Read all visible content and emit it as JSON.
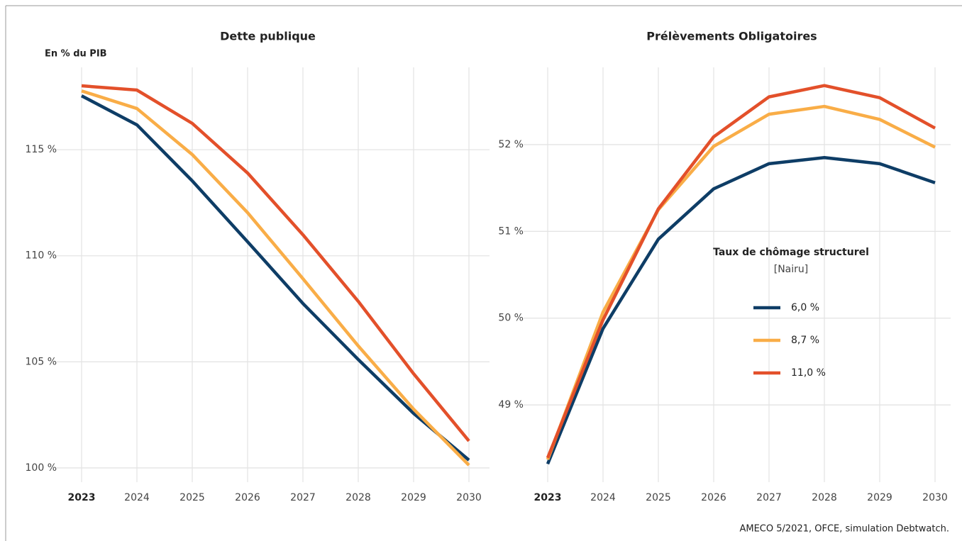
{
  "source": "AMECO 5/2021, OFCE, simulation Debtwatch.",
  "chart_data": [
    {
      "type": "line",
      "title": "Dette publique",
      "y_label": "En % du PIB",
      "categories": [
        "2023",
        "2024",
        "2025",
        "2026",
        "2027",
        "2028",
        "2029",
        "2030"
      ],
      "ylim": [
        99.33,
        118.88
      ],
      "yticks": [
        {
          "value": 100,
          "label": "100 %"
        },
        {
          "value": 105,
          "label": "105 %"
        },
        {
          "value": 110,
          "label": "110 %"
        },
        {
          "value": 115,
          "label": "115 %"
        }
      ],
      "grid": true,
      "series": [
        {
          "color": "#0e3d66",
          "values": [
            117.54,
            116.17,
            113.53,
            110.66,
            107.75,
            105.11,
            102.57,
            100.37
          ]
        },
        {
          "color": "#f9ad47",
          "values": [
            117.77,
            116.94,
            114.77,
            112.03,
            108.92,
            105.75,
            102.77,
            100.13
          ]
        },
        {
          "color": "#e3502a",
          "values": [
            118.01,
            117.81,
            116.24,
            113.9,
            110.99,
            107.85,
            104.44,
            101.27
          ]
        }
      ]
    },
    {
      "type": "line",
      "title": "Prélèvements Obligatoires",
      "categories": [
        "2023",
        "2024",
        "2025",
        "2026",
        "2027",
        "2028",
        "2029",
        "2030"
      ],
      "ylim": [
        48.11,
        52.89
      ],
      "yticks": [
        {
          "value": 49,
          "label": "49 %"
        },
        {
          "value": 50,
          "label": "50 %"
        },
        {
          "value": 51,
          "label": "51 %"
        },
        {
          "value": 52,
          "label": "52 %"
        }
      ],
      "grid": true,
      "legend": {
        "title": "Taux de chômage structurel",
        "subtitle": "[Nairu]"
      },
      "series": [
        {
          "name": "6,0 %",
          "color": "#0e3d66",
          "values": [
            48.32,
            49.88,
            50.91,
            51.49,
            51.78,
            51.85,
            51.78,
            51.56
          ]
        },
        {
          "name": "8,7 %",
          "color": "#f9ad47",
          "values": [
            48.37,
            50.07,
            51.25,
            51.98,
            52.35,
            52.44,
            52.29,
            51.97
          ]
        },
        {
          "name": "11,0 %",
          "color": "#e3502a",
          "values": [
            48.39,
            49.98,
            51.26,
            52.09,
            52.55,
            52.68,
            52.54,
            52.19
          ]
        }
      ]
    }
  ]
}
